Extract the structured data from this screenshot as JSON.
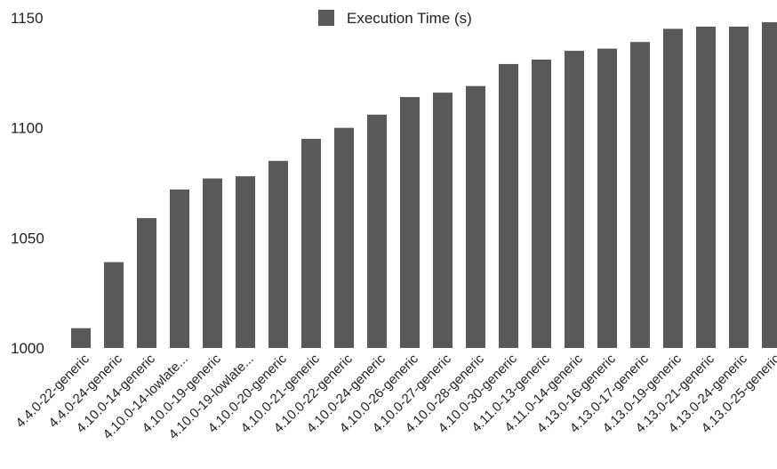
{
  "chart_data": {
    "type": "bar",
    "categories": [
      "4.4.0-22-generic",
      "4.4.0-24-generic",
      "4.10.0-14-generic",
      "4.10.0-14-lowlate...",
      "4.10.0-19-generic",
      "4.10.0-19-lowlate...",
      "4.10.0-20-generic",
      "4.10.0-21-generic",
      "4.10.0-22-generic",
      "4.10.0-24-generic",
      "4.10.0-26-generic",
      "4.10.0-27-generic",
      "4.10.0-28-generic",
      "4.10.0-30-generic",
      "4.11.0-13-generic",
      "4.11.0-14-generic",
      "4.13.0-16-generic",
      "4.13.0-17-generic",
      "4.13.0-19-generic",
      "4.13.0-21-generic",
      "4.13.0-24-generic",
      "4.13.0-25-generic"
    ],
    "series": [
      {
        "name": "Execution Time (s)",
        "color": "#595959",
        "values": [
          1009,
          1039,
          1059,
          1072,
          1077,
          1078,
          1085,
          1095,
          1100,
          1106,
          1114,
          1116,
          1119,
          1129,
          1131,
          1135,
          1136,
          1139,
          1145,
          1146,
          1146,
          1148
        ]
      }
    ],
    "y_ticks": [
      "1000",
      "1050",
      "1100",
      "1150"
    ],
    "ylim": [
      1000,
      1150
    ],
    "grid": false,
    "legend": "top-center"
  }
}
